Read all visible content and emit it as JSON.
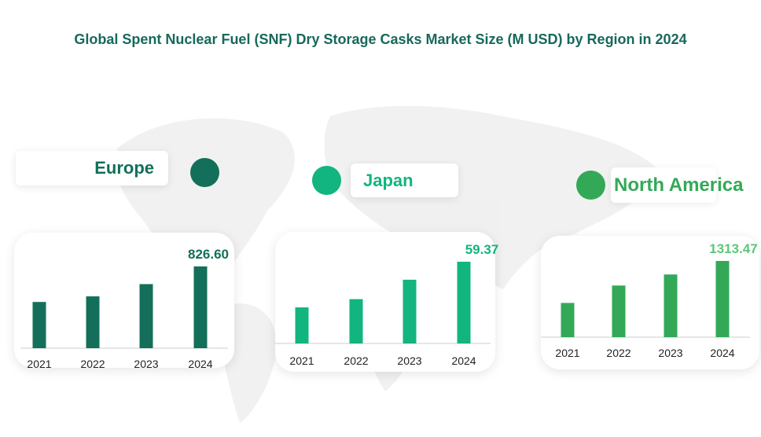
{
  "title": "Global Spent Nuclear Fuel (SNF) Dry Storage Casks Market Size (M USD) by Region in 2024",
  "chart_data": [
    {
      "type": "bar",
      "region": "Europe",
      "color": "#136f5a",
      "categories": [
        "2021",
        "2022",
        "2023",
        "2024"
      ],
      "values": [
        467.5,
        524.0,
        648.0,
        826.6
      ],
      "labels": [
        "",
        "",
        "",
        "826.60"
      ]
    },
    {
      "type": "bar",
      "region": "Japan",
      "color": "#12b47f",
      "categories": [
        "2021",
        "2022",
        "2023",
        "2024"
      ],
      "values": [
        26.2,
        32.2,
        46.3,
        59.37
      ],
      "labels": [
        "",
        "",
        "",
        "59.37"
      ]
    },
    {
      "type": "bar",
      "region": "North America",
      "color": "#33a957",
      "label_color": "#5cc77a",
      "categories": [
        "2021",
        "2022",
        "2023",
        "2024"
      ],
      "values": [
        590.0,
        890.0,
        1080.0,
        1313.47
      ],
      "labels": [
        "",
        "",
        "",
        "1313.47"
      ]
    }
  ]
}
